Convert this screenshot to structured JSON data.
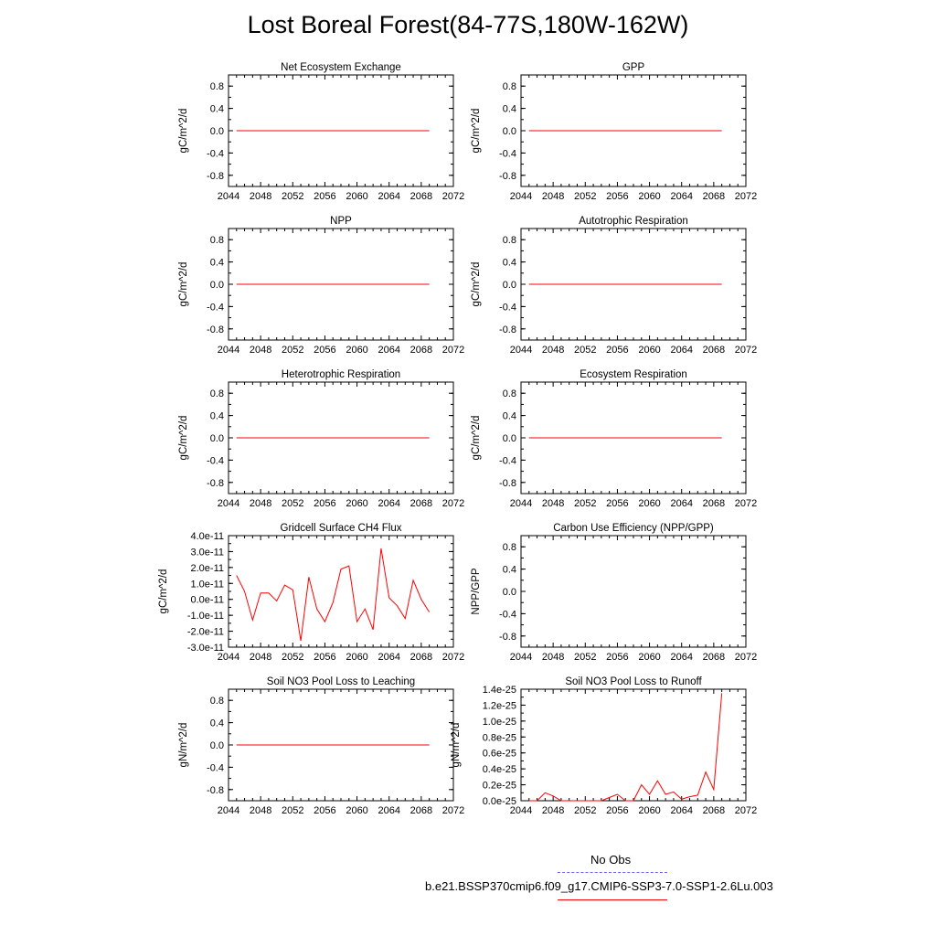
{
  "title": "Lost Boreal Forest(84-77S,180W-162W)",
  "colors": {
    "series": "#ff0000",
    "obs": "#6666ff",
    "axis": "#000000"
  },
  "legend": {
    "obs_label": "No Obs",
    "model_label": "b.e21.BSSP370cmip6.f09_g17.CMIP6-SSP3-7.0-SSP1-2.6Lu.003"
  },
  "chart_data": [
    {
      "type": "line",
      "title": "Net Ecosystem Exchange",
      "ylabel": "gC/m^2/d",
      "xlim": [
        2044,
        2072
      ],
      "ylim": [
        -1.0,
        1.0
      ],
      "xticks": [
        "2044",
        "2048",
        "2052",
        "2056",
        "2060",
        "2064",
        "2068",
        "2072"
      ],
      "yticks": [
        {
          "v": 0.8,
          "label": "0.8"
        },
        {
          "v": 0.4,
          "label": "0.4"
        },
        {
          "v": 0.0,
          "label": "0.0"
        },
        {
          "v": -0.4,
          "label": "-0.4"
        },
        {
          "v": -0.8,
          "label": "-0.8"
        }
      ],
      "series": [
        {
          "x": [
            2045,
            2069
          ],
          "y": [
            0,
            0
          ]
        }
      ]
    },
    {
      "type": "line",
      "title": "GPP",
      "ylabel": "gC/m^2/d",
      "xlim": [
        2044,
        2072
      ],
      "ylim": [
        -1.0,
        1.0
      ],
      "xticks": [
        "2044",
        "2048",
        "2052",
        "2056",
        "2060",
        "2064",
        "2068",
        "2072"
      ],
      "yticks": [
        {
          "v": 0.8,
          "label": "0.8"
        },
        {
          "v": 0.4,
          "label": "0.4"
        },
        {
          "v": 0.0,
          "label": "0.0"
        },
        {
          "v": -0.4,
          "label": "-0.4"
        },
        {
          "v": -0.8,
          "label": "-0.8"
        }
      ],
      "series": [
        {
          "x": [
            2045,
            2069
          ],
          "y": [
            0,
            0
          ]
        }
      ]
    },
    {
      "type": "line",
      "title": "NPP",
      "ylabel": "gC/m^2/d",
      "xlim": [
        2044,
        2072
      ],
      "ylim": [
        -1.0,
        1.0
      ],
      "xticks": [
        "2044",
        "2048",
        "2052",
        "2056",
        "2060",
        "2064",
        "2068",
        "2072"
      ],
      "yticks": [
        {
          "v": 0.8,
          "label": "0.8"
        },
        {
          "v": 0.4,
          "label": "0.4"
        },
        {
          "v": 0.0,
          "label": "0.0"
        },
        {
          "v": -0.4,
          "label": "-0.4"
        },
        {
          "v": -0.8,
          "label": "-0.8"
        }
      ],
      "series": [
        {
          "x": [
            2045,
            2069
          ],
          "y": [
            0,
            0
          ]
        }
      ]
    },
    {
      "type": "line",
      "title": "Autotrophic Respiration",
      "ylabel": "gC/m^2/d",
      "xlim": [
        2044,
        2072
      ],
      "ylim": [
        -1.0,
        1.0
      ],
      "xticks": [
        "2044",
        "2048",
        "2052",
        "2056",
        "2060",
        "2064",
        "2068",
        "2072"
      ],
      "yticks": [
        {
          "v": 0.8,
          "label": "0.8"
        },
        {
          "v": 0.4,
          "label": "0.4"
        },
        {
          "v": 0.0,
          "label": "0.0"
        },
        {
          "v": -0.4,
          "label": "-0.4"
        },
        {
          "v": -0.8,
          "label": "-0.8"
        }
      ],
      "series": [
        {
          "x": [
            2045,
            2069
          ],
          "y": [
            0,
            0
          ]
        }
      ]
    },
    {
      "type": "line",
      "title": "Heterotrophic Respiration",
      "ylabel": "gC/m^2/d",
      "xlim": [
        2044,
        2072
      ],
      "ylim": [
        -1.0,
        1.0
      ],
      "xticks": [
        "2044",
        "2048",
        "2052",
        "2056",
        "2060",
        "2064",
        "2068",
        "2072"
      ],
      "yticks": [
        {
          "v": 0.8,
          "label": "0.8"
        },
        {
          "v": 0.4,
          "label": "0.4"
        },
        {
          "v": 0.0,
          "label": "0.0"
        },
        {
          "v": -0.4,
          "label": "-0.4"
        },
        {
          "v": -0.8,
          "label": "-0.8"
        }
      ],
      "series": [
        {
          "x": [
            2045,
            2069
          ],
          "y": [
            0,
            0
          ]
        }
      ]
    },
    {
      "type": "line",
      "title": "Ecosystem Respiration",
      "ylabel": "gC/m^2/d",
      "xlim": [
        2044,
        2072
      ],
      "ylim": [
        -1.0,
        1.0
      ],
      "xticks": [
        "2044",
        "2048",
        "2052",
        "2056",
        "2060",
        "2064",
        "2068",
        "2072"
      ],
      "yticks": [
        {
          "v": 0.8,
          "label": "0.8"
        },
        {
          "v": 0.4,
          "label": "0.4"
        },
        {
          "v": 0.0,
          "label": "0.0"
        },
        {
          "v": -0.4,
          "label": "-0.4"
        },
        {
          "v": -0.8,
          "label": "-0.8"
        }
      ],
      "series": [
        {
          "x": [
            2045,
            2069
          ],
          "y": [
            0,
            0
          ]
        }
      ]
    },
    {
      "type": "line",
      "title": "Gridcell Surface CH4 Flux",
      "ylabel": "gC/m^2/d",
      "xlim": [
        2044,
        2072
      ],
      "ylim": [
        -3e-11,
        4e-11
      ],
      "xticks": [
        "2044",
        "2048",
        "2052",
        "2056",
        "2060",
        "2064",
        "2068",
        "2072"
      ],
      "yticks": [
        {
          "v": 4e-11,
          "label": "4.0e-11"
        },
        {
          "v": 3e-11,
          "label": "3.0e-11"
        },
        {
          "v": 2e-11,
          "label": "2.0e-11"
        },
        {
          "v": 1e-11,
          "label": "1.0e-11"
        },
        {
          "v": 0.0,
          "label": "0.0e-11"
        },
        {
          "v": -1e-11,
          "label": "-1.0e-11"
        },
        {
          "v": -2e-11,
          "label": "-2.0e-11"
        },
        {
          "v": -3e-11,
          "label": "-3.0e-11"
        }
      ],
      "series": [
        {
          "x": [
            2045,
            2046,
            2047,
            2048,
            2049,
            2050,
            2051,
            2052,
            2053,
            2054,
            2055,
            2056,
            2057,
            2058,
            2059,
            2060,
            2061,
            2062,
            2063,
            2064,
            2065,
            2066,
            2067,
            2068,
            2069
          ],
          "y": [
            1.5e-11,
            5e-12,
            -1.3e-11,
            4e-12,
            4e-12,
            -1e-12,
            9e-12,
            6e-12,
            -2.6e-11,
            1.4e-11,
            -6e-12,
            -1.4e-11,
            -2e-12,
            1.9e-11,
            2.1e-11,
            -1.4e-11,
            -6e-12,
            -1.9e-11,
            3.2e-11,
            1e-12,
            -4e-12,
            -1.2e-11,
            1.2e-11,
            0.0,
            -8e-12
          ]
        }
      ]
    },
    {
      "type": "line",
      "title": "Carbon Use Efficiency (NPP/GPP)",
      "ylabel": "NPP/GPP",
      "xlim": [
        2044,
        2072
      ],
      "ylim": [
        -1.0,
        1.0
      ],
      "xticks": [
        "2044",
        "2048",
        "2052",
        "2056",
        "2060",
        "2064",
        "2068",
        "2072"
      ],
      "yticks": [
        {
          "v": 0.8,
          "label": "0.8"
        },
        {
          "v": 0.4,
          "label": "0.4"
        },
        {
          "v": 0.0,
          "label": "0.0"
        },
        {
          "v": -0.4,
          "label": "-0.4"
        },
        {
          "v": -0.8,
          "label": "-0.8"
        }
      ],
      "series": []
    },
    {
      "type": "line",
      "title": "Soil NO3 Pool Loss to Leaching",
      "ylabel": "gN/m^2/d",
      "xlim": [
        2044,
        2072
      ],
      "ylim": [
        -1.0,
        1.0
      ],
      "xticks": [
        "2044",
        "2048",
        "2052",
        "2056",
        "2060",
        "2064",
        "2068",
        "2072"
      ],
      "yticks": [
        {
          "v": 0.8,
          "label": "0.8"
        },
        {
          "v": 0.4,
          "label": "0.4"
        },
        {
          "v": 0.0,
          "label": "0.0"
        },
        {
          "v": -0.4,
          "label": "-0.4"
        },
        {
          "v": -0.8,
          "label": "-0.8"
        }
      ],
      "series": [
        {
          "x": [
            2045,
            2069
          ],
          "y": [
            0,
            0
          ]
        }
      ]
    },
    {
      "type": "line",
      "title": "Soil NO3 Pool Loss to Runoff",
      "ylabel": "gN/m^2/d",
      "xlim": [
        2044,
        2072
      ],
      "ylim": [
        0,
        1.4e-25
      ],
      "xticks": [
        "2044",
        "2048",
        "2052",
        "2056",
        "2060",
        "2064",
        "2068",
        "2072"
      ],
      "yticks": [
        {
          "v": 1.4e-25,
          "label": "1.4e-25"
        },
        {
          "v": 1.2e-25,
          "label": "1.2e-25"
        },
        {
          "v": 1e-25,
          "label": "1.0e-25"
        },
        {
          "v": 8e-26,
          "label": "0.8e-25"
        },
        {
          "v": 6e-26,
          "label": "0.6e-25"
        },
        {
          "v": 4e-26,
          "label": "0.4e-25"
        },
        {
          "v": 2e-26,
          "label": "0.2e-25"
        },
        {
          "v": 0.0,
          "label": "0.0e-25"
        }
      ],
      "series": [
        {
          "x": [
            2045,
            2046,
            2047,
            2048,
            2049,
            2050,
            2051,
            2052,
            2053,
            2054,
            2055,
            2056,
            2057,
            2058,
            2059,
            2060,
            2061,
            2062,
            2063,
            2064,
            2065,
            2066,
            2067,
            2068,
            2069
          ],
          "y": [
            0,
            0,
            1e-26,
            6e-27,
            0,
            0,
            0,
            0,
            0,
            0,
            4e-27,
            8e-27,
            0,
            0,
            2e-26,
            8e-27,
            2.5e-26,
            8e-27,
            1.1e-26,
            2e-27,
            5e-27,
            7e-27,
            3.6e-26,
            1.4e-26,
            1.35e-25
          ]
        }
      ]
    }
  ]
}
